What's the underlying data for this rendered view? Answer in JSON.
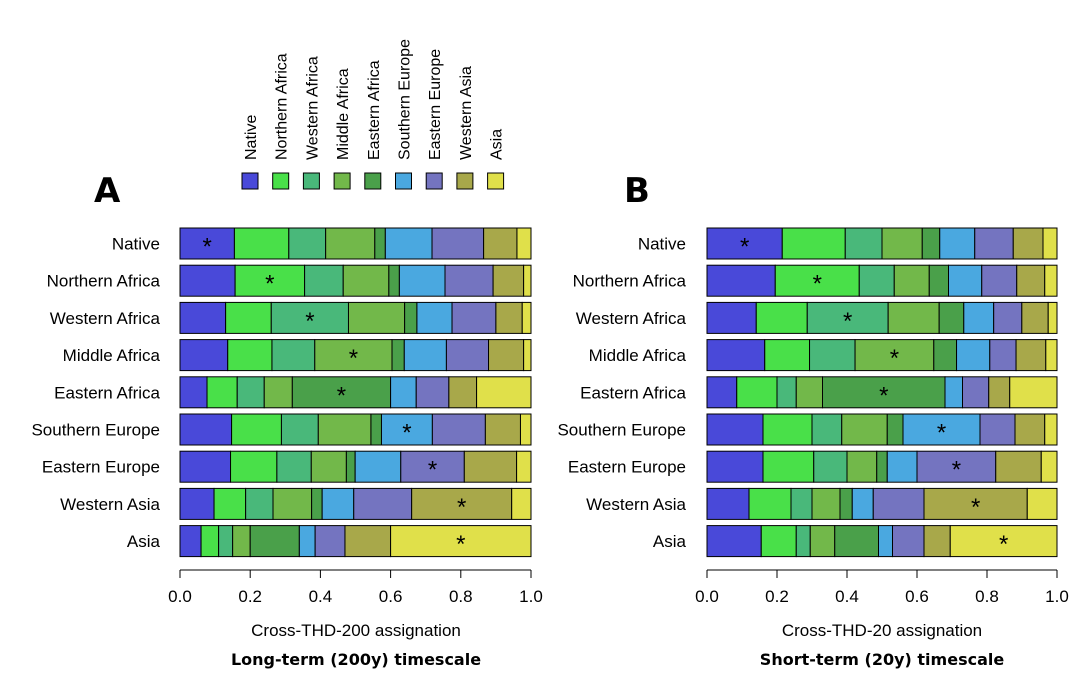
{
  "legend": {
    "items": [
      {
        "label": "Native",
        "color": "#4949d9"
      },
      {
        "label": "Northern Africa",
        "color": "#49e049"
      },
      {
        "label": "Western Africa",
        "color": "#49b87a"
      },
      {
        "label": "Middle Africa",
        "color": "#72b84a"
      },
      {
        "label": "Eastern Africa",
        "color": "#4aa04a"
      },
      {
        "label": "Southern Europe",
        "color": "#4aa8e0"
      },
      {
        "label": "Eastern Europe",
        "color": "#7474c0"
      },
      {
        "label": "Western Asia",
        "color": "#a8a84a"
      },
      {
        "label": "Asia",
        "color": "#e0e04a"
      }
    ]
  },
  "chart_data": [
    {
      "type": "bar",
      "orientation": "horizontal-stacked",
      "panel_letter": "A",
      "xlabel": "Cross-THD-200 assignation",
      "caption": "Long-term (200y) timescale",
      "xlim": [
        0,
        1.0
      ],
      "xticks": [
        "0.0",
        "0.2",
        "0.4",
        "0.6",
        "0.8",
        "1.0"
      ],
      "categories": [
        "Native",
        "Northern Africa",
        "Western Africa",
        "Middle Africa",
        "Eastern Africa",
        "Southern Europe",
        "Eastern Europe",
        "Western Asia",
        "Asia"
      ],
      "series": [
        {
          "name": "Native",
          "values": [
            0.155,
            0.157,
            0.13,
            0.136,
            0.077,
            0.147,
            0.144,
            0.097,
            0.06
          ]
        },
        {
          "name": "Northern Africa",
          "values": [
            0.155,
            0.198,
            0.13,
            0.126,
            0.086,
            0.142,
            0.132,
            0.09,
            0.05
          ]
        },
        {
          "name": "Western Africa",
          "values": [
            0.105,
            0.11,
            0.22,
            0.122,
            0.077,
            0.105,
            0.098,
            0.078,
            0.04
          ]
        },
        {
          "name": "Middle Africa",
          "values": [
            0.14,
            0.13,
            0.16,
            0.22,
            0.08,
            0.15,
            0.1,
            0.11,
            0.05
          ]
        },
        {
          "name": "Eastern Africa",
          "values": [
            0.03,
            0.03,
            0.035,
            0.035,
            0.28,
            0.03,
            0.025,
            0.03,
            0.14
          ]
        },
        {
          "name": "Southern Europe",
          "values": [
            0.133,
            0.13,
            0.1,
            0.12,
            0.073,
            0.145,
            0.13,
            0.09,
            0.045
          ]
        },
        {
          "name": "Eastern Europe",
          "values": [
            0.147,
            0.137,
            0.125,
            0.12,
            0.093,
            0.151,
            0.181,
            0.165,
            0.085
          ]
        },
        {
          "name": "Western Asia",
          "values": [
            0.095,
            0.087,
            0.075,
            0.1,
            0.079,
            0.1,
            0.149,
            0.285,
            0.13
          ]
        },
        {
          "name": "Asia",
          "values": [
            0.04,
            0.021,
            0.025,
            0.021,
            0.155,
            0.03,
            0.041,
            0.055,
            0.4
          ]
        }
      ],
      "asterisk_on_series": [
        0,
        1,
        2,
        3,
        4,
        5,
        6,
        7,
        8
      ]
    },
    {
      "type": "bar",
      "orientation": "horizontal-stacked",
      "panel_letter": "B",
      "xlabel": "Cross-THD-20 assignation",
      "caption": "Short-term (20y) timescale",
      "xlim": [
        0,
        1.0
      ],
      "xticks": [
        "0.0",
        "0.2",
        "0.4",
        "0.6",
        "0.8",
        "1.0"
      ],
      "categories": [
        "Native",
        "Northern Africa",
        "Western Africa",
        "Middle Africa",
        "Eastern Africa",
        "Southern Europe",
        "Eastern Europe",
        "Western Asia",
        "Asia"
      ],
      "series": [
        {
          "name": "Native",
          "values": [
            0.215,
            0.195,
            0.14,
            0.165,
            0.085,
            0.16,
            0.16,
            0.12,
            0.155
          ]
        },
        {
          "name": "Northern Africa",
          "values": [
            0.18,
            0.24,
            0.145,
            0.128,
            0.115,
            0.14,
            0.145,
            0.12,
            0.1
          ]
        },
        {
          "name": "Western Africa",
          "values": [
            0.105,
            0.1,
            0.23,
            0.13,
            0.055,
            0.085,
            0.095,
            0.06,
            0.04
          ]
        },
        {
          "name": "Middle Africa",
          "values": [
            0.115,
            0.1,
            0.145,
            0.225,
            0.075,
            0.13,
            0.085,
            0.08,
            0.07
          ]
        },
        {
          "name": "Eastern Africa",
          "values": [
            0.05,
            0.055,
            0.07,
            0.065,
            0.35,
            0.045,
            0.03,
            0.035,
            0.125
          ]
        },
        {
          "name": "Southern Europe",
          "values": [
            0.1,
            0.095,
            0.085,
            0.095,
            0.05,
            0.22,
            0.085,
            0.06,
            0.04
          ]
        },
        {
          "name": "Eastern Europe",
          "values": [
            0.11,
            0.1,
            0.08,
            0.075,
            0.075,
            0.1,
            0.225,
            0.145,
            0.09
          ]
        },
        {
          "name": "Western Asia",
          "values": [
            0.085,
            0.08,
            0.075,
            0.085,
            0.06,
            0.085,
            0.13,
            0.295,
            0.075
          ]
        },
        {
          "name": "Asia",
          "values": [
            0.04,
            0.035,
            0.025,
            0.032,
            0.135,
            0.035,
            0.045,
            0.085,
            0.305
          ]
        }
      ],
      "asterisk_on_series": [
        0,
        1,
        2,
        3,
        4,
        5,
        6,
        7,
        8
      ]
    }
  ]
}
